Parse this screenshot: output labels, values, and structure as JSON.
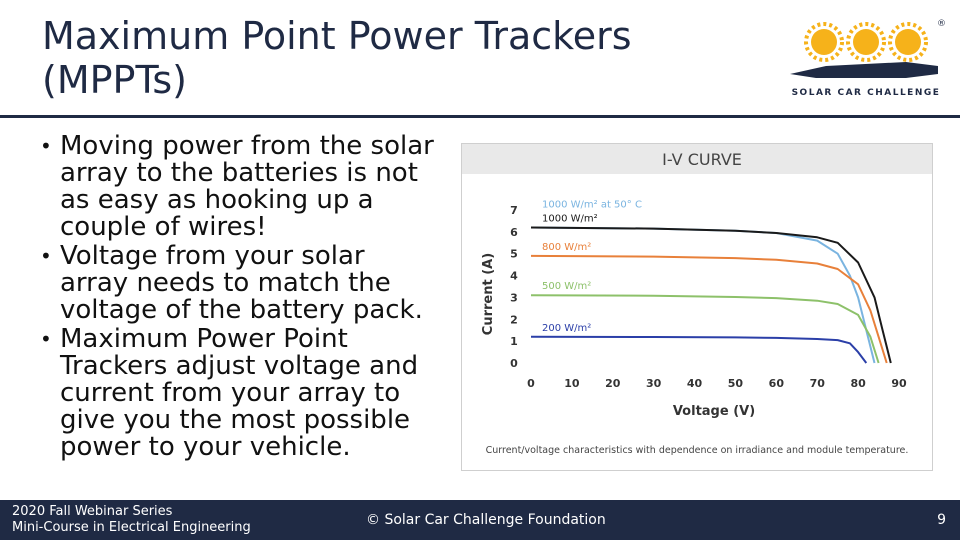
{
  "slide": {
    "title_line1": "Maximum Point Power Trackers",
    "title_line2": "(MPPTs)",
    "bullets": [
      "Moving power from the solar array to the batteries is not as easy as hooking up a couple of wires!",
      "Voltage from your solar array needs to match the voltage of the battery pack.",
      "Maximum Power Point Trackers  adjust voltage and current from your array to give you the most possible power to your vehicle."
    ]
  },
  "logo": {
    "caption": "SOLAR CAR CHALLENGE",
    "registered_mark": "®",
    "colors": {
      "sun": "#f6b21a",
      "car": "#1f2a44"
    }
  },
  "chart_data": {
    "type": "line",
    "title": "I-V CURVE",
    "xlabel": "Voltage (V)",
    "ylabel": "Current (A)",
    "xlim": [
      0,
      90
    ],
    "ylim": [
      0,
      7
    ],
    "x_ticks": [
      "0",
      "10",
      "20",
      "30",
      "40",
      "50",
      "60",
      "70",
      "80",
      "90"
    ],
    "y_ticks": [
      "0",
      "1",
      "2",
      "3",
      "4",
      "5",
      "6",
      "7"
    ],
    "caption": "Current/voltage characteristics with dependence on irradiance and module temperature.",
    "series": [
      {
        "name": "1000 W/m² at 50° C",
        "color": "#7ab4e0",
        "x": [
          0,
          30,
          50,
          60,
          70,
          75,
          78,
          80,
          82,
          84
        ],
        "values": [
          6.2,
          6.15,
          6.05,
          5.95,
          5.6,
          5.0,
          4.0,
          3.0,
          1.5,
          0
        ]
      },
      {
        "name": "1000 W/m²",
        "color": "#1a1a1a",
        "x": [
          0,
          30,
          50,
          60,
          70,
          75,
          80,
          84,
          86,
          88
        ],
        "values": [
          6.2,
          6.15,
          6.05,
          5.95,
          5.75,
          5.5,
          4.6,
          3.0,
          1.5,
          0
        ]
      },
      {
        "name": "800 W/m²",
        "color": "#e8803a",
        "x": [
          0,
          30,
          50,
          60,
          70,
          75,
          80,
          83,
          85,
          87
        ],
        "values": [
          4.9,
          4.87,
          4.8,
          4.72,
          4.55,
          4.3,
          3.6,
          2.4,
          1.2,
          0
        ]
      },
      {
        "name": "500 W/m²",
        "color": "#8dc16a",
        "x": [
          0,
          30,
          50,
          60,
          70,
          75,
          80,
          83,
          85
        ],
        "values": [
          3.1,
          3.08,
          3.02,
          2.97,
          2.85,
          2.7,
          2.2,
          1.2,
          0
        ]
      },
      {
        "name": "200 W/m²",
        "color": "#2b3fa8",
        "x": [
          0,
          30,
          50,
          60,
          70,
          75,
          78,
          80,
          82
        ],
        "values": [
          1.2,
          1.19,
          1.17,
          1.15,
          1.1,
          1.05,
          0.9,
          0.5,
          0
        ]
      }
    ]
  },
  "footer": {
    "line1": "2020 Fall Webinar Series",
    "line2": "Mini-Course in Electrical Engineering",
    "center": "© Solar Car Challenge Foundation",
    "page": "9"
  }
}
